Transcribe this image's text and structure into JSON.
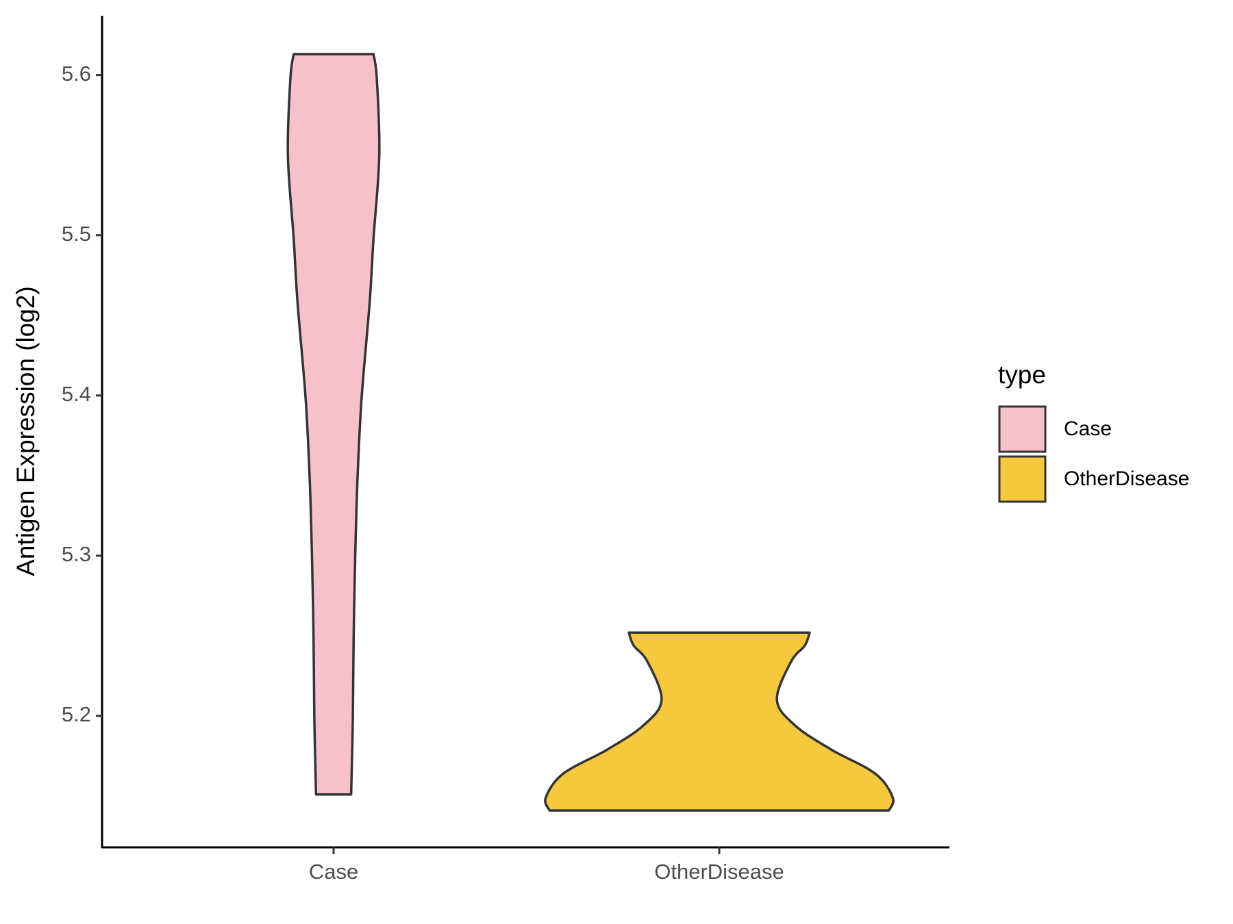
{
  "chart_data": {
    "type": "violin",
    "y_label": "Antigen Expression (log2)",
    "legend_title": "type",
    "categories": [
      "Case",
      "OtherDisease"
    ],
    "ylim": [
      5.118,
      5.637
    ],
    "yticks": [
      5.2,
      5.3,
      5.4,
      5.5,
      5.6
    ],
    "legend": "right",
    "series": [
      {
        "name": "Case",
        "color": "#f7c1cc",
        "y": [
          5.613,
          5.598,
          5.55,
          5.498,
          5.458,
          5.398,
          5.348,
          5.299,
          5.249,
          5.199,
          5.151
        ],
        "width": [
          0.207,
          0.224,
          0.237,
          0.207,
          0.187,
          0.145,
          0.124,
          0.112,
          0.104,
          0.1,
          0.091
        ]
      },
      {
        "name": "OtherDisease",
        "color": "#f5c83e",
        "y": [
          5.252,
          5.244,
          5.234,
          5.21,
          5.194,
          5.179,
          5.164,
          5.149,
          5.141
        ],
        "width": [
          0.469,
          0.444,
          0.373,
          0.299,
          0.394,
          0.581,
          0.809,
          0.9,
          0.88
        ]
      }
    ]
  }
}
